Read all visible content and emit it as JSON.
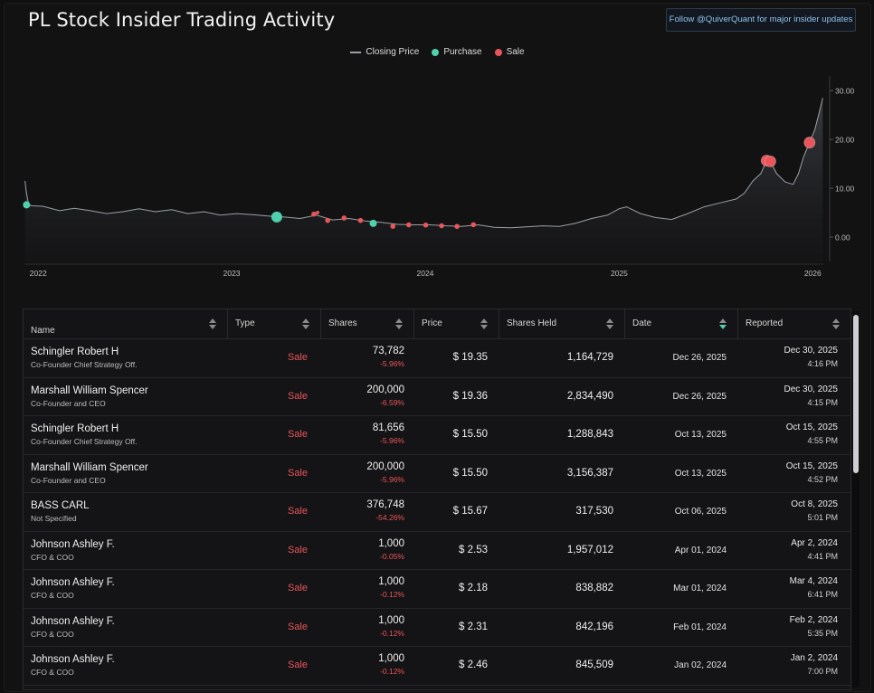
{
  "page": {
    "title": "PL Stock Insider Trading Activity",
    "follow_button": "Follow @QuiverQuant for major insider updates"
  },
  "legend": {
    "closing_price": "Closing Price",
    "purchase": "Purchase",
    "sale": "Sale"
  },
  "colors": {
    "purchase": "#4fd1b0",
    "sale": "#e8555a",
    "price_line": "#9aa0a6",
    "background": "#121213"
  },
  "chart_data": {
    "type": "line",
    "ylim": [
      -5,
      33
    ],
    "y_ticks": [
      "30.00",
      "20.00",
      "10.00",
      "0.00"
    ],
    "x_ticks": [
      "2022",
      "2023",
      "2024",
      "2025",
      "2026"
    ],
    "grid": false,
    "legend_position": "top-center",
    "series": [
      {
        "name": "Closing Price",
        "points": [
          [
            "2021-12-07",
            11.5
          ],
          [
            "2021-12-10",
            9.0
          ],
          [
            "2021-12-14",
            6.6
          ],
          [
            "2021-12-20",
            6.4
          ],
          [
            "2022-01-10",
            6.3
          ],
          [
            "2022-02-10",
            5.4
          ],
          [
            "2022-03-10",
            5.9
          ],
          [
            "2022-04-10",
            5.4
          ],
          [
            "2022-05-10",
            4.8
          ],
          [
            "2022-06-10",
            5.2
          ],
          [
            "2022-07-10",
            5.8
          ],
          [
            "2022-08-10",
            5.2
          ],
          [
            "2022-09-10",
            5.6
          ],
          [
            "2022-10-10",
            4.8
          ],
          [
            "2022-11-10",
            5.2
          ],
          [
            "2022-12-10",
            4.5
          ],
          [
            "2023-01-10",
            4.8
          ],
          [
            "2023-02-10",
            4.6
          ],
          [
            "2023-03-10",
            4.3
          ],
          [
            "2023-04-10",
            4.1
          ],
          [
            "2023-05-10",
            3.8
          ],
          [
            "2023-06-10",
            4.5
          ],
          [
            "2023-07-10",
            3.5
          ],
          [
            "2023-08-10",
            3.8
          ],
          [
            "2023-09-10",
            3.3
          ],
          [
            "2023-10-10",
            3.0
          ],
          [
            "2023-11-10",
            2.6
          ],
          [
            "2023-12-10",
            2.5
          ],
          [
            "2024-01-10",
            2.5
          ],
          [
            "2024-02-10",
            2.3
          ],
          [
            "2024-03-10",
            2.2
          ],
          [
            "2024-04-10",
            2.5
          ],
          [
            "2024-05-10",
            2.0
          ],
          [
            "2024-06-10",
            1.9
          ],
          [
            "2024-07-10",
            2.1
          ],
          [
            "2024-08-10",
            2.3
          ],
          [
            "2024-09-10",
            2.2
          ],
          [
            "2024-10-10",
            2.8
          ],
          [
            "2024-11-10",
            3.8
          ],
          [
            "2024-12-10",
            4.5
          ],
          [
            "2025-01-01",
            5.8
          ],
          [
            "2025-01-15",
            6.2
          ],
          [
            "2025-02-10",
            4.8
          ],
          [
            "2025-03-10",
            4.0
          ],
          [
            "2025-04-10",
            3.6
          ],
          [
            "2025-05-10",
            4.8
          ],
          [
            "2025-06-10",
            6.2
          ],
          [
            "2025-07-10",
            7.0
          ],
          [
            "2025-08-10",
            7.8
          ],
          [
            "2025-08-25",
            9.0
          ],
          [
            "2025-09-10",
            11.5
          ],
          [
            "2025-09-25",
            13.0
          ],
          [
            "2025-10-06",
            15.7
          ],
          [
            "2025-10-13",
            15.5
          ],
          [
            "2025-10-25",
            13.0
          ],
          [
            "2025-11-10",
            11.3
          ],
          [
            "2025-11-25",
            10.8
          ],
          [
            "2025-12-05",
            13.0
          ],
          [
            "2025-12-15",
            16.5
          ],
          [
            "2025-12-26",
            19.4
          ],
          [
            "2026-01-05",
            22.0
          ],
          [
            "2026-01-12",
            25.0
          ],
          [
            "2026-01-20",
            28.5
          ]
        ]
      }
    ],
    "trades": [
      {
        "date": "2021-12-10",
        "price": 6.6,
        "type": "Purchase",
        "size": "medium"
      },
      {
        "date": "2023-03-27",
        "price": 4.1,
        "type": "Purchase",
        "size": "large"
      },
      {
        "date": "2023-06-05",
        "price": 4.7,
        "type": "Sale",
        "size": "small"
      },
      {
        "date": "2023-06-12",
        "price": 5.0,
        "type": "Sale",
        "size": "tiny"
      },
      {
        "date": "2023-07-01",
        "price": 3.4,
        "type": "Sale",
        "size": "small"
      },
      {
        "date": "2023-08-01",
        "price": 3.9,
        "type": "Sale",
        "size": "small"
      },
      {
        "date": "2023-09-01",
        "price": 3.4,
        "type": "Sale",
        "size": "small"
      },
      {
        "date": "2023-09-25",
        "price": 2.8,
        "type": "Purchase",
        "size": "medium"
      },
      {
        "date": "2023-11-01",
        "price": 2.2,
        "type": "Sale",
        "size": "small"
      },
      {
        "date": "2023-12-01",
        "price": 2.5,
        "type": "Sale",
        "size": "small"
      },
      {
        "date": "2024-01-02",
        "price": 2.46,
        "type": "Sale",
        "size": "small"
      },
      {
        "date": "2024-02-01",
        "price": 2.31,
        "type": "Sale",
        "size": "small"
      },
      {
        "date": "2024-03-01",
        "price": 2.18,
        "type": "Sale",
        "size": "small"
      },
      {
        "date": "2024-04-01",
        "price": 2.53,
        "type": "Sale",
        "size": "small"
      },
      {
        "date": "2025-10-06",
        "price": 15.67,
        "type": "Sale",
        "size": "large"
      },
      {
        "date": "2025-10-13",
        "price": 15.5,
        "type": "Sale",
        "size": "large"
      },
      {
        "date": "2025-12-26",
        "price": 19.36,
        "type": "Sale",
        "size": "large"
      }
    ]
  },
  "table": {
    "headers": [
      "Name",
      "Type",
      "Shares",
      "Price",
      "Shares Held",
      "Date",
      "Reported"
    ],
    "rows": [
      {
        "name": "Schingler Robert H",
        "title": "Co-Founder Chief Strategy Off.",
        "type": "Sale",
        "shares": "73,782",
        "pct": "-5.96%",
        "price": "$ 19.35",
        "held": "1,164,729",
        "date": "Dec 26, 2025",
        "reported": "Dec 30, 2025",
        "time": "4:16 PM"
      },
      {
        "name": "Marshall William Spencer",
        "title": "Co-Founder and CEO",
        "type": "Sale",
        "shares": "200,000",
        "pct": "-6.59%",
        "price": "$ 19.36",
        "held": "2,834,490",
        "date": "Dec 26, 2025",
        "reported": "Dec 30, 2025",
        "time": "4:15 PM"
      },
      {
        "name": "Schingler Robert H",
        "title": "Co-Founder Chief Strategy Off.",
        "type": "Sale",
        "shares": "81,656",
        "pct": "-5.96%",
        "price": "$ 15.50",
        "held": "1,288,843",
        "date": "Oct 13, 2025",
        "reported": "Oct 15, 2025",
        "time": "4:55 PM"
      },
      {
        "name": "Marshall William Spencer",
        "title": "Co-Founder and CEO",
        "type": "Sale",
        "shares": "200,000",
        "pct": "-5.96%",
        "price": "$ 15.50",
        "held": "3,156,387",
        "date": "Oct 13, 2025",
        "reported": "Oct 15, 2025",
        "time": "4:52 PM"
      },
      {
        "name": "BASS CARL",
        "title": "Not Specified",
        "type": "Sale",
        "shares": "376,748",
        "pct": "-54.26%",
        "price": "$ 15.67",
        "held": "317,530",
        "date": "Oct 06, 2025",
        "reported": "Oct 8, 2025",
        "time": "5:01 PM"
      },
      {
        "name": "Johnson Ashley F.",
        "title": "CFO & COO",
        "type": "Sale",
        "shares": "1,000",
        "pct": "-0.05%",
        "price": "$ 2.53",
        "held": "1,957,012",
        "date": "Apr 01, 2024",
        "reported": "Apr 2, 2024",
        "time": "4:41 PM"
      },
      {
        "name": "Johnson Ashley F.",
        "title": "CFO & COO",
        "type": "Sale",
        "shares": "1,000",
        "pct": "-0.12%",
        "price": "$ 2.18",
        "held": "838,882",
        "date": "Mar 01, 2024",
        "reported": "Mar 4, 2024",
        "time": "6:41 PM"
      },
      {
        "name": "Johnson Ashley F.",
        "title": "CFO & COO",
        "type": "Sale",
        "shares": "1,000",
        "pct": "-0.12%",
        "price": "$ 2.31",
        "held": "842,196",
        "date": "Feb 01, 2024",
        "reported": "Feb 2, 2024",
        "time": "5:35 PM"
      },
      {
        "name": "Johnson Ashley F.",
        "title": "CFO & COO",
        "type": "Sale",
        "shares": "1,000",
        "pct": "-0.12%",
        "price": "$ 2.46",
        "held": "845,509",
        "date": "Jan 02, 2024",
        "reported": "Jan 2, 2024",
        "time": "7:00 PM"
      }
    ]
  }
}
